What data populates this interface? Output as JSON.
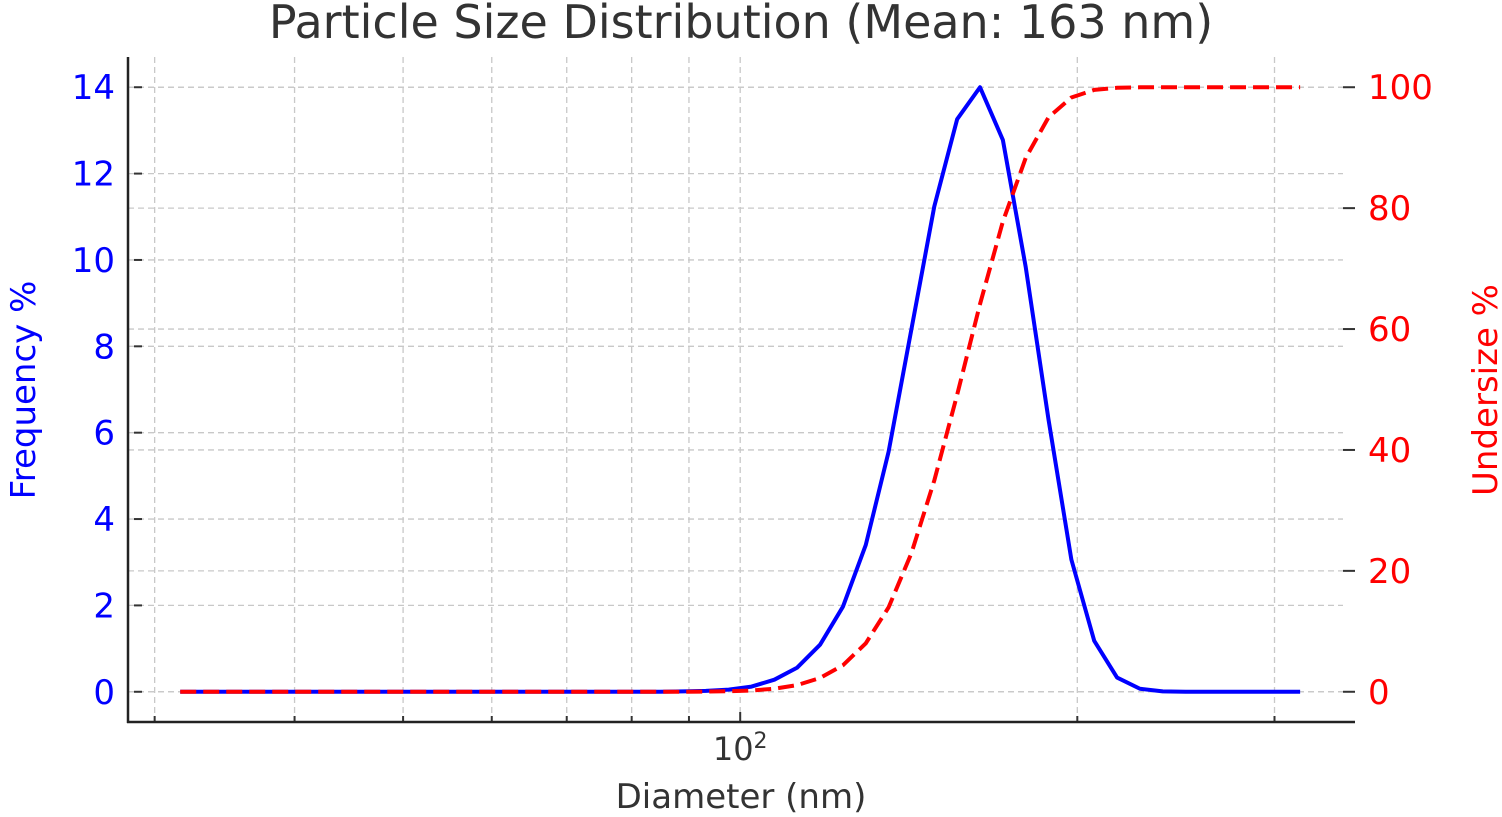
{
  "chart_data": {
    "type": "line",
    "title": "Particle Size Distribution (Mean: 163 nm)",
    "xlabel": "Diameter (nm)",
    "ylabel": "Frequency %",
    "ylabel_right": "Undersize %",
    "xscale": "log",
    "xlim": [
      28.4,
      354
    ],
    "ylim": [
      -0.7,
      14.7
    ],
    "ylim_right": [
      -5,
      105
    ],
    "grid": true,
    "x_major_ticks": [
      {
        "value": 100,
        "base": "10",
        "exp": "2"
      }
    ],
    "x_minor_ticks": [
      30,
      40,
      50,
      60,
      70,
      80,
      90,
      200,
      300
    ],
    "y_ticks": [
      0,
      2,
      4,
      6,
      8,
      10,
      12,
      14
    ],
    "y_ticks_right": [
      0,
      20,
      40,
      60,
      80,
      100
    ],
    "colors": {
      "frequency": "#0000ff",
      "undersize": "#ff0000",
      "text": "#333333"
    },
    "x": [
      31.62,
      33.14,
      34.74,
      36.41,
      38.16,
      40.0,
      41.92,
      43.94,
      46.05,
      48.27,
      50.59,
      53.02,
      55.57,
      58.25,
      61.05,
      63.98,
      67.06,
      70.29,
      73.67,
      77.21,
      80.93,
      84.82,
      88.9,
      93.18,
      97.66,
      102.36,
      107.28,
      112.44,
      117.85,
      123.52,
      129.46,
      135.68,
      142.21,
      149.05,
      156.22,
      163.73,
      171.61,
      179.86,
      188.51,
      197.58,
      207.08,
      217.04,
      227.48,
      238.42,
      249.89,
      261.91,
      274.51,
      287.71,
      301.55,
      316.23
    ],
    "series": [
      {
        "name": "Frequency %",
        "axis": "left",
        "style": "solid",
        "values": [
          0,
          0,
          0,
          0,
          0,
          0,
          0,
          0,
          0,
          0,
          0,
          0,
          0,
          0,
          0,
          0,
          0,
          0,
          0,
          0,
          0,
          0,
          0.01,
          0.02,
          0.05,
          0.12,
          0.28,
          0.56,
          1.09,
          1.97,
          3.4,
          5.56,
          8.4,
          11.24,
          13.26,
          14.0,
          12.78,
          9.84,
          6.3,
          3.06,
          1.18,
          0.33,
          0.07,
          0.01,
          0,
          0,
          0,
          0,
          0,
          0
        ]
      },
      {
        "name": "Undersize %",
        "axis": "right",
        "style": "dashed",
        "values": [
          0,
          0,
          0,
          0,
          0,
          0,
          0,
          0,
          0,
          0,
          0,
          0,
          0,
          0,
          0,
          0,
          0,
          0,
          0,
          0,
          0,
          0,
          0.01,
          0.03,
          0.09,
          0.21,
          0.51,
          1.11,
          2.28,
          4.38,
          8.02,
          13.96,
          22.94,
          34.96,
          49.14,
          64.11,
          77.77,
          88.29,
          95.03,
          98.3,
          99.56,
          99.91,
          99.99,
          100,
          100,
          100,
          100,
          100,
          100,
          100
        ]
      }
    ]
  }
}
